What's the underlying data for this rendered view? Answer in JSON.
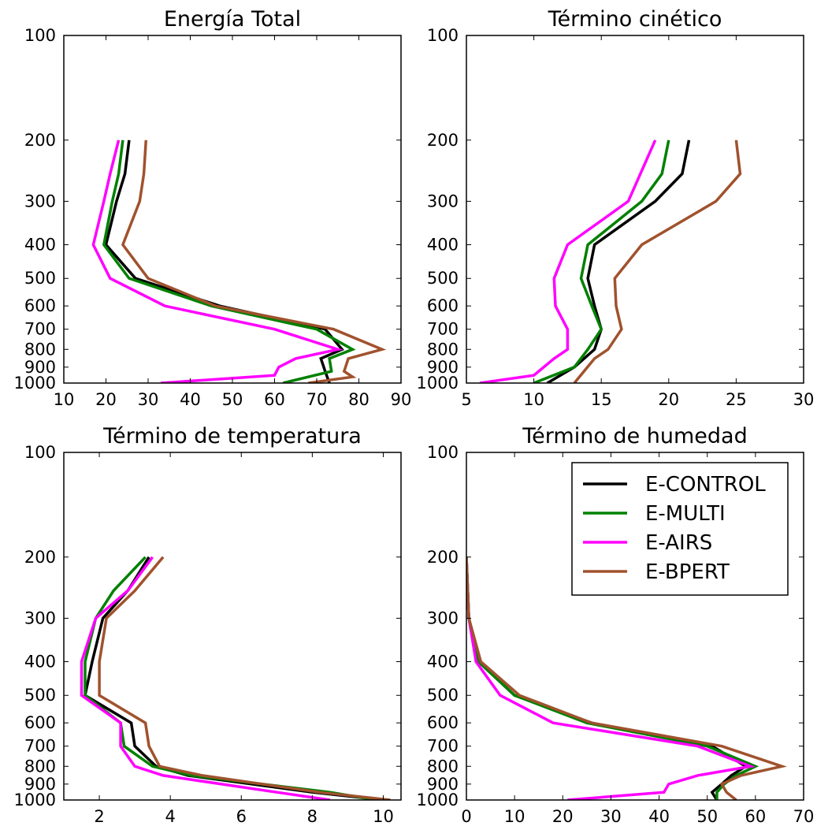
{
  "chart_data": [
    {
      "type": "line",
      "title": "Energía Total",
      "xlim": [
        10,
        90
      ],
      "xticks": [
        10,
        20,
        30,
        40,
        50,
        60,
        70,
        80,
        90
      ],
      "ylim": [
        100,
        1000
      ],
      "yscale": "log",
      "yinverted": true,
      "yticks": [
        100,
        200,
        300,
        400,
        500,
        600,
        700,
        800,
        900,
        1000
      ],
      "legend": false,
      "series": [
        {
          "key": "control",
          "y": [
            200,
            250,
            300,
            400,
            500,
            600,
            700,
            800,
            850,
            925,
            1000
          ],
          "x": [
            25.5,
            24.5,
            22.5,
            20.0,
            27.0,
            47.0,
            72.0,
            76.0,
            71.0,
            72.0,
            73.0
          ]
        },
        {
          "key": "multi",
          "y": [
            200,
            250,
            300,
            400,
            500,
            600,
            700,
            800,
            850,
            925,
            1000
          ],
          "x": [
            24.0,
            23.0,
            21.5,
            19.5,
            25.5,
            45.0,
            70.0,
            78.5,
            73.0,
            73.5,
            62.0
          ]
        },
        {
          "key": "airs",
          "y": [
            200,
            250,
            300,
            400,
            500,
            600,
            700,
            800,
            850,
            900,
            950,
            1000
          ],
          "x": [
            23.0,
            21.0,
            19.5,
            17.0,
            21.0,
            34.0,
            60.0,
            75.0,
            65.0,
            61.0,
            60.0,
            33.0
          ]
        },
        {
          "key": "bpert",
          "y": [
            200,
            250,
            300,
            400,
            500,
            600,
            700,
            800,
            850,
            925,
            960,
            1000
          ],
          "x": [
            29.5,
            29.0,
            28.0,
            24.0,
            30.0,
            46.0,
            74.0,
            85.5,
            77.5,
            76.5,
            78.5,
            68.0
          ]
        }
      ]
    },
    {
      "type": "line",
      "title": "Término cinético",
      "xlim": [
        5,
        30
      ],
      "xticks": [
        5,
        10,
        15,
        20,
        25,
        30
      ],
      "ylim": [
        100,
        1000
      ],
      "yscale": "log",
      "yinverted": true,
      "yticks": [
        100,
        200,
        300,
        400,
        500,
        600,
        700,
        800,
        900,
        1000
      ],
      "legend": false,
      "series": [
        {
          "key": "control",
          "y": [
            200,
            250,
            300,
            400,
            500,
            600,
            700,
            800,
            900,
            1000
          ],
          "x": [
            21.5,
            21.0,
            19.0,
            14.5,
            14.0,
            14.5,
            15.0,
            14.5,
            13.0,
            11.0
          ]
        },
        {
          "key": "multi",
          "y": [
            200,
            250,
            300,
            400,
            500,
            600,
            700,
            800,
            900,
            1000
          ],
          "x": [
            20.0,
            19.5,
            18.0,
            14.0,
            13.5,
            14.3,
            15.0,
            14.0,
            13.0,
            10.0
          ]
        },
        {
          "key": "airs",
          "y": [
            200,
            300,
            400,
            500,
            600,
            700,
            800,
            850,
            950,
            1000
          ],
          "x": [
            19.0,
            17.0,
            12.5,
            11.5,
            11.6,
            12.5,
            12.5,
            11.5,
            10.0,
            6.0
          ]
        },
        {
          "key": "bpert",
          "y": [
            200,
            250,
            300,
            400,
            500,
            600,
            700,
            800,
            850,
            1000
          ],
          "x": [
            25.0,
            25.3,
            23.5,
            18.0,
            16.0,
            16.1,
            16.5,
            15.5,
            14.5,
            13.0
          ]
        }
      ]
    },
    {
      "type": "line",
      "title": "Término de temperatura",
      "xlim": [
        1,
        10.5
      ],
      "xticks": [
        2,
        4,
        6,
        8,
        10
      ],
      "ylim": [
        100,
        1000
      ],
      "yscale": "log",
      "yinverted": true,
      "yticks": [
        100,
        200,
        300,
        400,
        500,
        600,
        700,
        800,
        900,
        1000
      ],
      "legend": false,
      "series": [
        {
          "key": "control",
          "y": [
            200,
            250,
            300,
            400,
            500,
            600,
            700,
            800,
            850,
            950,
            1000
          ],
          "x": [
            3.4,
            2.8,
            2.1,
            1.8,
            1.6,
            2.9,
            3.0,
            3.6,
            4.5,
            8.0,
            10.0
          ]
        },
        {
          "key": "multi",
          "y": [
            200,
            250,
            300,
            400,
            500,
            600,
            700,
            800,
            850,
            950,
            1000
          ],
          "x": [
            3.3,
            2.4,
            1.9,
            1.6,
            1.6,
            2.6,
            2.7,
            3.5,
            4.6,
            8.5,
            9.8
          ]
        },
        {
          "key": "airs",
          "y": [
            200,
            250,
            300,
            400,
            500,
            600,
            700,
            800,
            850,
            950,
            1000
          ],
          "x": [
            3.5,
            2.8,
            1.9,
            1.5,
            1.5,
            2.6,
            2.6,
            3.0,
            3.8,
            7.0,
            8.5
          ]
        },
        {
          "key": "bpert",
          "y": [
            200,
            250,
            300,
            400,
            500,
            600,
            700,
            800,
            850,
            950,
            1000
          ],
          "x": [
            3.8,
            3.0,
            2.2,
            2.0,
            2.0,
            3.3,
            3.4,
            3.7,
            4.9,
            8.2,
            10.2
          ]
        }
      ]
    },
    {
      "type": "line",
      "title": "Término de humedad",
      "xlim": [
        0,
        70
      ],
      "xticks": [
        0,
        10,
        20,
        30,
        40,
        50,
        60,
        70
      ],
      "ylim": [
        100,
        1000
      ],
      "yscale": "log",
      "yinverted": true,
      "yticks": [
        100,
        200,
        300,
        400,
        500,
        600,
        700,
        800,
        900,
        1000
      ],
      "legend": true,
      "legend_position": "top-right",
      "series": [
        {
          "key": "control",
          "y": [
            200,
            300,
            400,
            500,
            600,
            700,
            800,
            850,
            900,
            950,
            1000
          ],
          "x": [
            0.0,
            0.5,
            2.5,
            10.0,
            26.0,
            51.0,
            58.0,
            55.0,
            53.0,
            51.0,
            52.0
          ]
        },
        {
          "key": "multi",
          "y": [
            200,
            300,
            400,
            500,
            600,
            700,
            800,
            850,
            900,
            950,
            1000
          ],
          "x": [
            0.0,
            0.5,
            2.5,
            10.0,
            25.0,
            50.0,
            60.0,
            56.0,
            53.5,
            52.0,
            52.0
          ]
        },
        {
          "key": "airs",
          "y": [
            200,
            300,
            400,
            500,
            600,
            700,
            800,
            850,
            900,
            950,
            1000
          ],
          "x": [
            0.0,
            0.5,
            2.0,
            7.0,
            18.0,
            48.0,
            59.0,
            48.0,
            42.0,
            41.0,
            21.0
          ]
        },
        {
          "key": "bpert",
          "y": [
            200,
            300,
            400,
            500,
            600,
            700,
            800,
            850,
            900,
            950,
            1000
          ],
          "x": [
            0.0,
            0.5,
            3.0,
            11.0,
            26.0,
            53.0,
            65.5,
            57.0,
            53.0,
            54.0,
            56.0
          ]
        }
      ]
    }
  ],
  "legend": {
    "entries": [
      {
        "key": "control",
        "label": "E-CONTROL",
        "color": "#000000"
      },
      {
        "key": "multi",
        "label": "E-MULTI",
        "color": "#008000"
      },
      {
        "key": "airs",
        "label": "E-AIRS",
        "color": "#ff00ff"
      },
      {
        "key": "bpert",
        "label": "E-BPERT",
        "color": "#a0522d"
      }
    ]
  }
}
